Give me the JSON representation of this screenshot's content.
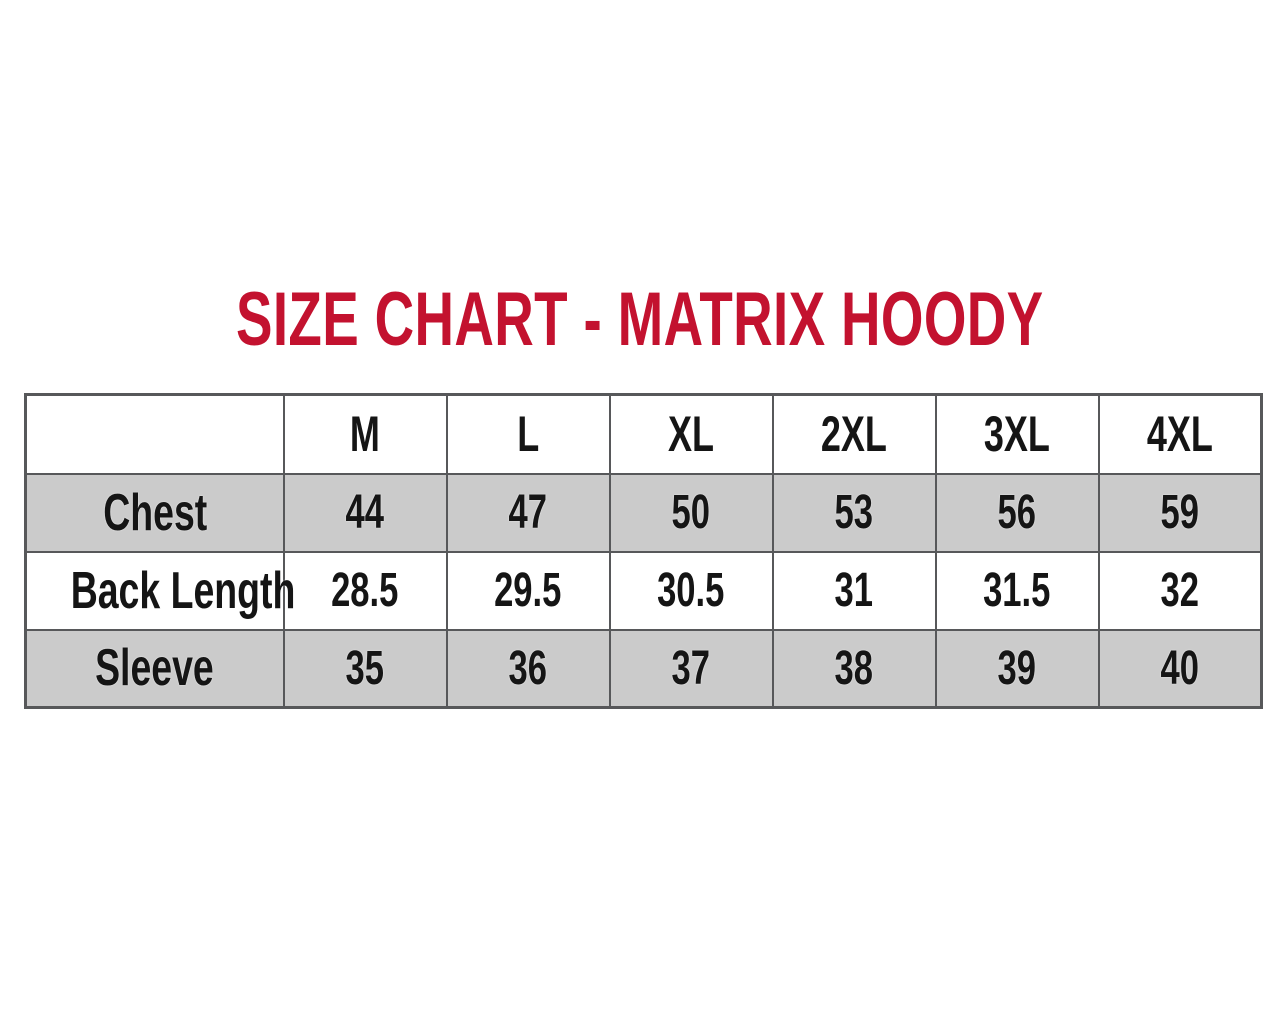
{
  "title": {
    "text": "SIZE CHART - MATRIX HOODY"
  },
  "colors": {
    "title_red": "#c3122f",
    "row_gray": "#cbcbcb",
    "border_gray": "#57585a",
    "text_black": "#151515",
    "background": "#ffffff"
  },
  "chart_data": {
    "type": "table",
    "title": "SIZE CHART - MATRIX HOODY",
    "columns": [
      "",
      "M",
      "L",
      "XL",
      "2XL",
      "3XL",
      "4XL"
    ],
    "rows": [
      {
        "label": "Chest",
        "values": [
          44,
          47,
          50,
          53,
          56,
          59
        ]
      },
      {
        "label": "Back Length",
        "values": [
          28.5,
          29.5,
          30.5,
          31,
          31.5,
          32
        ]
      },
      {
        "label": "Sleeve",
        "values": [
          35,
          36,
          37,
          38,
          39,
          40
        ]
      }
    ],
    "layout": {
      "header_background": "#ffffff",
      "striped_rows": [
        "gray",
        "white",
        "gray"
      ],
      "grid": true
    }
  }
}
